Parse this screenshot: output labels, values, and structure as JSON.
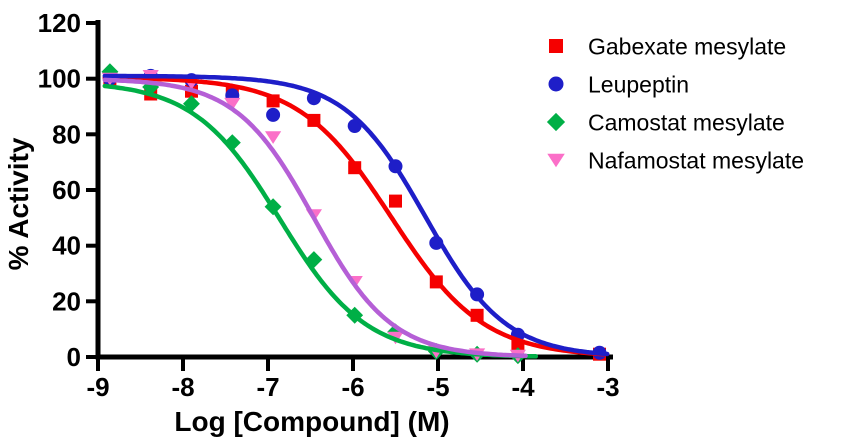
{
  "page": {
    "background_color": "#FFFFFF"
  },
  "chart_data": {
    "type": "scatter",
    "subtype": "dose-response-inhibition-curves",
    "title": "",
    "xlabel": "Log [Compound] (M)",
    "ylabel": "% Activity",
    "xlim": [
      -9,
      -3
    ],
    "ylim": [
      0,
      120
    ],
    "xticks": [
      -9,
      -8,
      -7,
      -6,
      -5,
      -4,
      -3
    ],
    "yticks": [
      0,
      20,
      40,
      60,
      80,
      100,
      120
    ],
    "grid": false,
    "legend_position": "right",
    "axis_color": "#000000",
    "x": [
      -8.86,
      -8.38,
      -7.9,
      -7.42,
      -6.94,
      -6.46,
      -5.98,
      -5.5,
      -5.02,
      -4.54,
      -4.06,
      -3.58,
      -3.1
    ],
    "series": [
      {
        "name": "Gabexate mesylate",
        "marker": "square",
        "marker_color": "#F50000",
        "line_color": "#F50000",
        "values": [
          100,
          94.5,
          95.5,
          95,
          92,
          85,
          68,
          56,
          27,
          15,
          4,
          null,
          1
        ],
        "fit": {
          "model": "4PL",
          "top": 100.5,
          "bottom": 0,
          "logIC50": -5.55,
          "hill": 0.8
        },
        "fit_range": [
          -8.92,
          -3.02
        ]
      },
      {
        "name": "Leupeptin",
        "marker": "circle",
        "marker_color": "#1E1EC8",
        "line_color": "#1E1EC8",
        "values": [
          100,
          101,
          99.5,
          94,
          87,
          93,
          83,
          68.5,
          41,
          22.5,
          8,
          null,
          1.5
        ],
        "fit": {
          "model": "4PL",
          "top": 101,
          "bottom": 0,
          "logIC50": -5.15,
          "hill": 0.92
        },
        "fit_range": [
          -8.92,
          -3.0
        ]
      },
      {
        "name": "Camostat mesylate",
        "marker": "diamond",
        "marker_color": "#00AF46",
        "line_color": "#00AF46",
        "values": [
          102.5,
          97,
          91,
          77,
          54,
          35,
          15,
          9,
          2,
          1,
          0.5,
          null,
          null
        ],
        "fit": {
          "model": "4PL",
          "top": 99,
          "bottom": 0,
          "logIC50": -6.86,
          "hill": 0.86
        },
        "fit_range": [
          -8.92,
          -3.85
        ]
      },
      {
        "name": "Nafamostat mesylate",
        "marker": "triangle-down",
        "marker_color": "#FB6FC8",
        "line_color": "#B55FD6",
        "values": [
          100,
          101,
          98.5,
          91,
          79,
          51,
          27,
          7,
          2,
          1,
          0.5,
          null,
          null
        ],
        "fit": {
          "model": "4PL",
          "top": 100,
          "bottom": 0,
          "logIC50": -6.46,
          "hill": 0.95
        },
        "fit_range": [
          -8.92,
          -3.95
        ]
      }
    ]
  }
}
